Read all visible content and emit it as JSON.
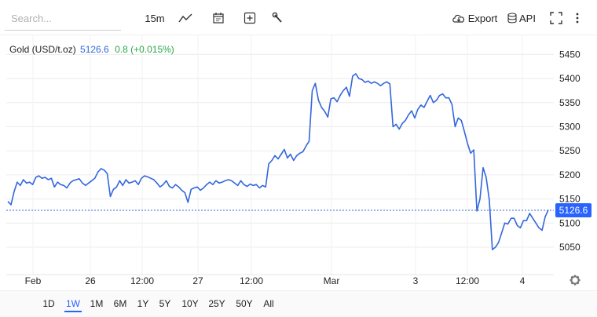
{
  "toolbar": {
    "search_placeholder": "Search...",
    "interval": "15m",
    "export_label": "Export",
    "api_label": "API"
  },
  "legend": {
    "name": "Gold (USD/t.oz)",
    "price": "5126.6",
    "change": "0.8 (+0.015%)"
  },
  "range_buttons": [
    "1D",
    "1W",
    "1M",
    "6M",
    "1Y",
    "5Y",
    "10Y",
    "25Y",
    "50Y",
    "All"
  ],
  "active_range": "1W",
  "colors": {
    "line": "#3366dd",
    "accent": "#2962ff",
    "up": "#2aa84a"
  },
  "chart_data": {
    "type": "line",
    "ylim": [
      5030,
      5470
    ],
    "y_ticks": [
      5050,
      5100,
      5150,
      5200,
      5250,
      5300,
      5350,
      5400,
      5450
    ],
    "x_ticks": [
      "Feb",
      "26",
      "12:00",
      "27",
      "12:00",
      "Mar",
      "3",
      "12:00",
      "4"
    ],
    "last_price_label": "5126.6",
    "last_price": 5126.6,
    "grid": true,
    "y_axis_side": "right",
    "series": [
      {
        "values": [
          5145,
          5138,
          5165,
          5185,
          5178,
          5190,
          5183,
          5185,
          5180,
          5195,
          5198,
          5193,
          5195,
          5190,
          5193,
          5175,
          5185,
          5180,
          5178,
          5173,
          5183,
          5188,
          5190,
          5192,
          5183,
          5178,
          5183,
          5188,
          5193,
          5206,
          5213,
          5210,
          5203,
          5155,
          5170,
          5175,
          5188,
          5178,
          5190,
          5183,
          5185,
          5188,
          5180,
          5193,
          5198,
          5196,
          5193,
          5190,
          5183,
          5175,
          5180,
          5188,
          5176,
          5173,
          5180,
          5175,
          5168,
          5163,
          5143,
          5170,
          5173,
          5175,
          5168,
          5173,
          5180,
          5185,
          5180,
          5188,
          5183,
          5185,
          5188,
          5190,
          5188,
          5183,
          5178,
          5188,
          5180,
          5176,
          5181,
          5178,
          5180,
          5173,
          5178,
          5175,
          5223,
          5230,
          5240,
          5233,
          5243,
          5253,
          5235,
          5243,
          5230,
          5240,
          5245,
          5248,
          5260,
          5270,
          5375,
          5390,
          5355,
          5340,
          5332,
          5320,
          5358,
          5360,
          5352,
          5365,
          5375,
          5382,
          5363,
          5405,
          5410,
          5400,
          5398,
          5392,
          5395,
          5390,
          5393,
          5390,
          5385,
          5390,
          5393,
          5389,
          5300,
          5305,
          5295,
          5307,
          5313,
          5325,
          5333,
          5318,
          5336,
          5345,
          5340,
          5353,
          5365,
          5350,
          5355,
          5365,
          5368,
          5360,
          5360,
          5346,
          5300,
          5318,
          5313,
          5290,
          5265,
          5245,
          5252,
          5125,
          5150,
          5215,
          5195,
          5148,
          5045,
          5050,
          5060,
          5080,
          5100,
          5098,
          5110,
          5110,
          5095,
          5090,
          5105,
          5105,
          5120,
          5110,
          5100,
          5090,
          5085,
          5113,
          5127
        ]
      }
    ]
  }
}
